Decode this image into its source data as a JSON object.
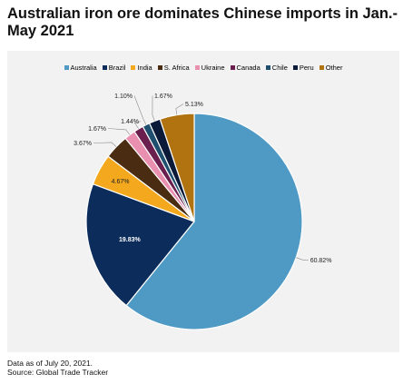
{
  "title": "Australian iron ore dominates Chinese imports in Jan.-May 2021",
  "footnote": {
    "line1": "Data as of July 20, 2021.",
    "line2": "Source: Global Trade Tracker"
  },
  "chart_data": {
    "type": "pie",
    "legend_position": "top",
    "slices": [
      {
        "name": "Australia",
        "value": 60.82,
        "label": "60.82%",
        "color": "#4e9ac4"
      },
      {
        "name": "Brazil",
        "value": 19.83,
        "label": "19.83%",
        "color": "#0c2c5c"
      },
      {
        "name": "India",
        "value": 4.67,
        "label": "4.67%",
        "color": "#f4a81d"
      },
      {
        "name": "S. Africa",
        "value": 3.67,
        "label": "3.67%",
        "color": "#4a2c12"
      },
      {
        "name": "Ukraine",
        "value": 1.67,
        "label": "1.67%",
        "color": "#e98fb0"
      },
      {
        "name": "Canada",
        "value": 1.44,
        "label": "1.44%",
        "color": "#6a1f4e"
      },
      {
        "name": "Chile",
        "value": 1.1,
        "label": "1.10%",
        "color": "#1f4f6e"
      },
      {
        "name": "Peru",
        "value": 1.67,
        "label": "1.67%",
        "color": "#0a1a38"
      },
      {
        "name": "Other",
        "value": 5.13,
        "label": "5.13%",
        "color": "#b07310"
      }
    ]
  }
}
